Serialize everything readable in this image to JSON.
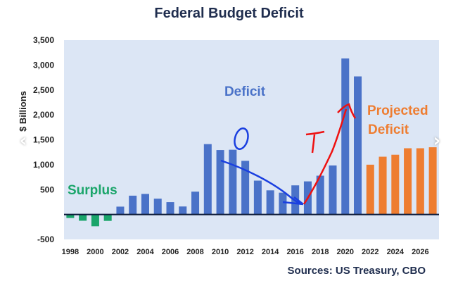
{
  "chart_data": {
    "type": "bar",
    "title": "Federal Budget Deficit",
    "ylabel": "$ Billions",
    "xlabel": "",
    "ylim": [
      -500,
      3500
    ],
    "yticks": [
      -500,
      500,
      1000,
      1500,
      2000,
      2500,
      3000,
      3500
    ],
    "ytick_labels": [
      "-500",
      "500",
      "1,000",
      "1,500",
      "2,000",
      "2,500",
      "3,000",
      "3,500"
    ],
    "xtick_labels": [
      "1998",
      "2000",
      "2002",
      "2004",
      "2006",
      "2008",
      "2010",
      "2012",
      "2014",
      "2016",
      "2018",
      "2020",
      "2022",
      "2024",
      "2026"
    ],
    "categories": [
      "1998",
      "1999",
      "2000",
      "2001",
      "2002",
      "2003",
      "2004",
      "2005",
      "2006",
      "2007",
      "2008",
      "2009",
      "2010",
      "2011",
      "2012",
      "2013",
      "2014",
      "2015",
      "2016",
      "2017",
      "2018",
      "2019",
      "2020",
      "2021",
      "2022",
      "2023",
      "2024",
      "2025",
      "2026",
      "2027"
    ],
    "values": [
      -70,
      -125,
      -236,
      -128,
      158,
      378,
      413,
      318,
      248,
      161,
      459,
      1413,
      1294,
      1300,
      1077,
      680,
      485,
      438,
      585,
      665,
      779,
      984,
      3132,
      2772,
      1000,
      1160,
      1200,
      1330,
      1330,
      1350
    ],
    "bar_kind": [
      "surplus",
      "surplus",
      "surplus",
      "surplus",
      "deficit",
      "deficit",
      "deficit",
      "deficit",
      "deficit",
      "deficit",
      "deficit",
      "deficit",
      "deficit",
      "deficit",
      "deficit",
      "deficit",
      "deficit",
      "deficit",
      "deficit",
      "deficit",
      "deficit",
      "deficit",
      "deficit",
      "deficit",
      "projected",
      "projected",
      "projected",
      "projected",
      "projected",
      "projected"
    ],
    "colors": {
      "surplus": "#1aa56a",
      "deficit": "#4a72c8",
      "projected": "#ee7d31",
      "plot_bg": "#dce6f5",
      "axis": "#0d1b3a",
      "ink_blue": "#1a3fe0",
      "ink_red": "#ee1111"
    },
    "annotations": {
      "deficit": "Deficit",
      "surplus": "Surplus",
      "projected_line1": "Projected",
      "projected_line2": "Deficit"
    },
    "source": "Sources: US Treasury, CBO",
    "grid": false
  },
  "nav": {
    "prev_icon": "‹",
    "next_icon": "›"
  }
}
